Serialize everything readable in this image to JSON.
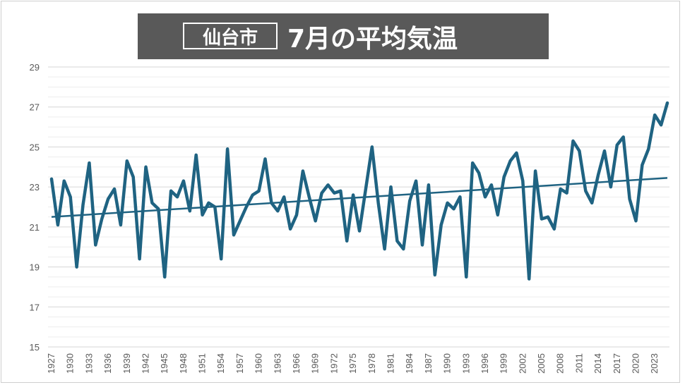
{
  "header": {
    "city": "仙台市",
    "title": "7月の平均気温"
  },
  "chart_data": {
    "type": "line",
    "title": "仙台市 7月の平均気温",
    "xlabel": "",
    "ylabel": "",
    "ylim": [
      15,
      29
    ],
    "y_ticks": [
      15,
      17,
      19,
      21,
      23,
      25,
      27,
      29
    ],
    "x_tick_labels": [
      "1927",
      "1930",
      "1933",
      "1936",
      "1939",
      "1942",
      "1945",
      "1948",
      "1951",
      "1954",
      "1957",
      "1960",
      "1963",
      "1966",
      "1969",
      "1972",
      "1975",
      "1978",
      "1981",
      "1984",
      "1987",
      "1990",
      "1993",
      "1996",
      "1999",
      "2002",
      "2005",
      "2008",
      "2011",
      "2014",
      "2017",
      "2020",
      "2023"
    ],
    "grid": true,
    "minor_grid": true,
    "legend": "none",
    "line_color": "#1f6382",
    "trend_color": "#1f6382",
    "series": [
      {
        "x": [
          1927,
          1928,
          1929,
          1930,
          1931,
          1932,
          1933,
          1934,
          1935,
          1936,
          1937,
          1938,
          1939,
          1940,
          1941,
          1942,
          1943,
          1944,
          1945,
          1946,
          1947,
          1948,
          1949,
          1950,
          1951,
          1952,
          1953,
          1954,
          1955,
          1956,
          1957,
          1958,
          1959,
          1960,
          1961,
          1962,
          1963,
          1964,
          1965,
          1966,
          1967,
          1968,
          1969,
          1970,
          1971,
          1972,
          1973,
          1974,
          1975,
          1976,
          1977,
          1978,
          1979,
          1980,
          1981,
          1982,
          1983,
          1984,
          1985,
          1986,
          1987,
          1988,
          1989,
          1990,
          1991,
          1992,
          1993,
          1994,
          1995,
          1996,
          1997,
          1998,
          1999,
          2000,
          2001,
          2002,
          2003,
          2004,
          2005,
          2006,
          2007,
          2008,
          2009,
          2010,
          2011,
          2012,
          2013,
          2014,
          2015,
          2016,
          2017,
          2018,
          2019,
          2020,
          2021,
          2022,
          2023,
          2024,
          2025
        ],
        "values": [
          23.4,
          21.1,
          23.3,
          22.5,
          19.0,
          22.1,
          24.2,
          20.1,
          21.4,
          22.4,
          22.9,
          21.1,
          24.3,
          23.5,
          19.4,
          24.0,
          22.2,
          21.9,
          18.5,
          22.8,
          22.5,
          23.3,
          21.8,
          24.6,
          21.6,
          22.2,
          22.0,
          19.4,
          24.9,
          20.6,
          21.3,
          22.0,
          22.6,
          22.8,
          24.4,
          22.2,
          21.8,
          22.5,
          20.9,
          21.6,
          23.8,
          22.5,
          21.3,
          22.7,
          23.1,
          22.7,
          22.8,
          20.3,
          22.6,
          20.8,
          22.9,
          25.0,
          22.2,
          19.9,
          23.0,
          20.3,
          19.9,
          22.3,
          23.3,
          20.1,
          23.1,
          18.6,
          21.1,
          22.2,
          21.9,
          22.5,
          18.5,
          24.2,
          23.7,
          22.5,
          23.1,
          21.6,
          23.5,
          24.3,
          24.7,
          23.3,
          18.4,
          23.8,
          21.4,
          21.5,
          20.9,
          22.9,
          22.7,
          25.3,
          24.8,
          22.8,
          22.2,
          23.6,
          24.8,
          23.0,
          25.1,
          25.5,
          22.4,
          21.3,
          24.1,
          24.9,
          26.6,
          26.1,
          27.2
        ]
      }
    ],
    "trend": {
      "x": [
        1927,
        2025
      ],
      "values": [
        21.5,
        23.45
      ]
    }
  }
}
